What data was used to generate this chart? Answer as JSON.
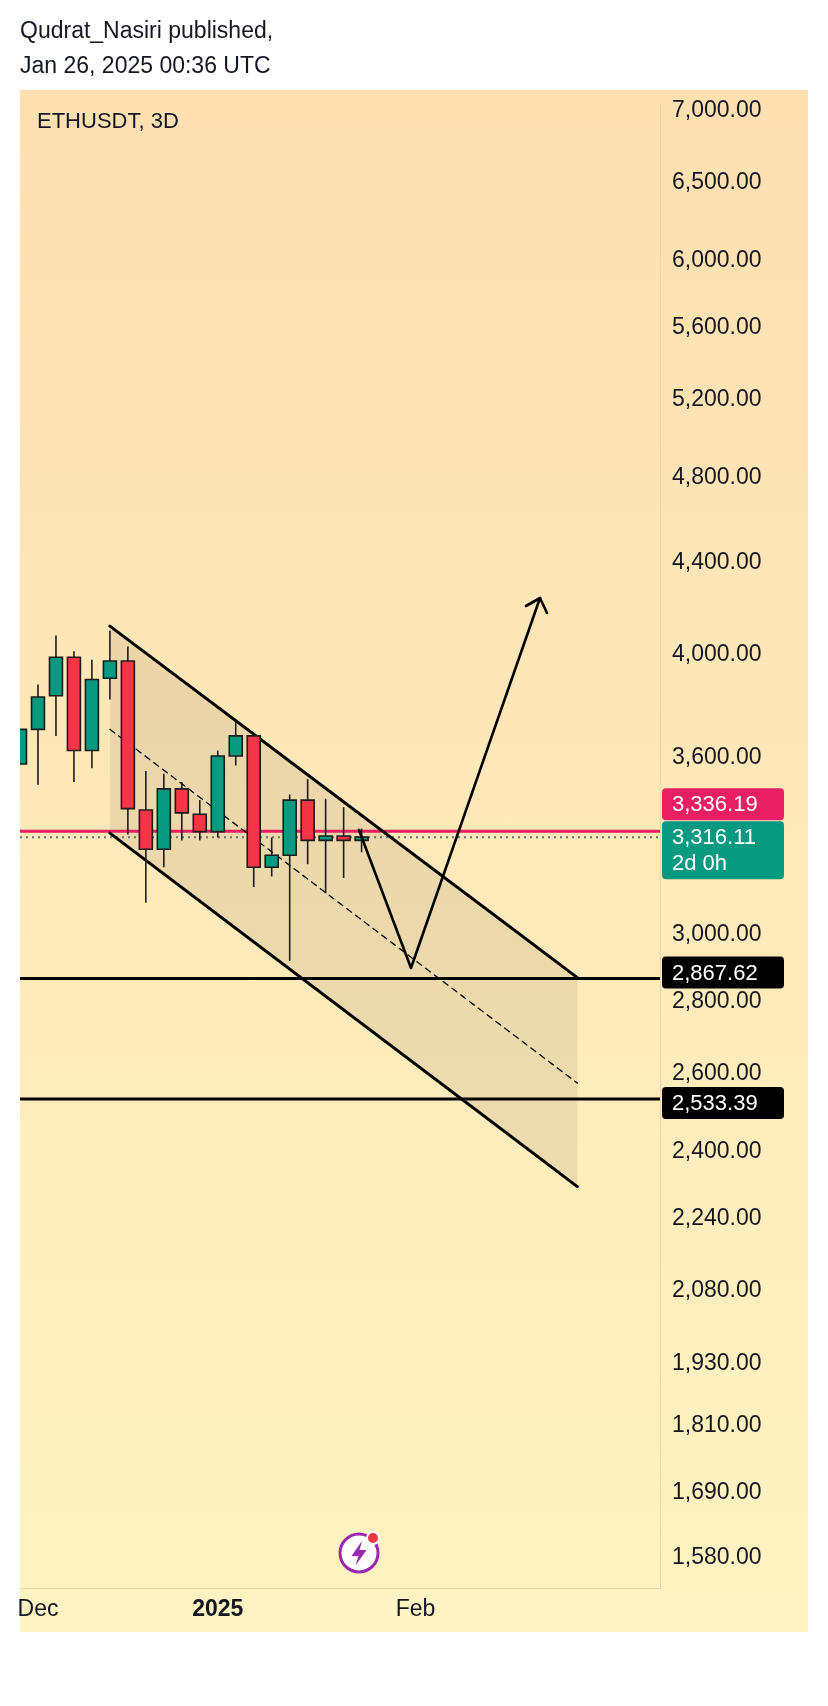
{
  "chart_data": {
    "type": "candlestick",
    "title": "ETHUSDT, 3D",
    "annotations": [
      "Qudrat_Nasiri published,",
      "Jan 26, 2025 00:36 UTC"
    ],
    "x": [
      "2024-11-29",
      "2024-12-02",
      "2024-12-05",
      "2024-12-08",
      "2024-12-11",
      "2024-12-14",
      "2024-12-17",
      "2024-12-20",
      "2024-12-23",
      "2024-12-26",
      "2024-12-29",
      "2025-01-01",
      "2025-01-04",
      "2025-01-07",
      "2025-01-10",
      "2025-01-13",
      "2025-01-16",
      "2025-01-19",
      "2025-01-22",
      "2025-01-25"
    ],
    "ohlc": [
      [
        3575,
        3705,
        3575,
        3705
      ],
      [
        3705,
        3880,
        3500,
        3830
      ],
      [
        3835,
        4080,
        3680,
        3990
      ],
      [
        3990,
        4015,
        3510,
        3625
      ],
      [
        3625,
        3980,
        3560,
        3900
      ],
      [
        3905,
        4100,
        3820,
        3975
      ],
      [
        3975,
        4035,
        3325,
        3415
      ],
      [
        3410,
        3550,
        3100,
        3275
      ],
      [
        3275,
        3540,
        3215,
        3485
      ],
      [
        3485,
        3510,
        3305,
        3400
      ],
      [
        3395,
        3445,
        3305,
        3335
      ],
      [
        3335,
        3625,
        3315,
        3605
      ],
      [
        3605,
        3735,
        3570,
        3680
      ],
      [
        3680,
        3690,
        3150,
        3215
      ],
      [
        3215,
        3315,
        3185,
        3255
      ],
      [
        3255,
        3465,
        2920,
        3445
      ],
      [
        3445,
        3520,
        3225,
        3305
      ],
      [
        3305,
        3450,
        3130,
        3320
      ],
      [
        3320,
        3420,
        3180,
        3305
      ],
      [
        3305,
        3345,
        3265,
        3316.11
      ]
    ],
    "colors": [
      "#089981",
      "#089981",
      "#089981",
      "#f23645",
      "#089981",
      "#089981",
      "#f23645",
      "#f23645",
      "#089981",
      "#f23645",
      "#f23645",
      "#089981",
      "#089981",
      "#f23645",
      "#089981",
      "#089981",
      "#f23645",
      "#089981",
      "#f23645",
      "#089981"
    ],
    "series": [
      {
        "type": "line",
        "x": [
          "2024-12-14",
          "2025-03-02"
        ],
        "values": [
          4120,
          2870
        ],
        "color": "#000000"
      },
      {
        "type": "line",
        "x": [
          "2024-12-14",
          "2025-03-02"
        ],
        "values": [
          3705,
          2575
        ],
        "lower": [
          3330,
          2315
        ],
        "upper": [
          4120,
          2870
        ],
        "color": "#000000",
        "line_style": "dashed"
      },
      {
        "type": "line",
        "x": [
          "2024-12-14",
          "2025-03-02"
        ],
        "values": [
          3330,
          2315
        ],
        "color": "#000000"
      }
    ],
    "ref_lines": [
      {
        "axis": "y",
        "value": 3316.11,
        "label": "3,316.11\n2d 0h",
        "color": "#6a6d78",
        "line_style": "dotted"
      },
      {
        "axis": "y",
        "value": 3336.19,
        "label": "3,336.19",
        "color": "#e91e63"
      },
      {
        "axis": "y",
        "value": 2867.62,
        "label": "2,867.62",
        "color": "#000000"
      },
      {
        "axis": "y",
        "value": 2533.39,
        "label": "2,533.39",
        "color": "#000000"
      }
    ],
    "xlim": [
      "2024-11-29",
      "2025-03-15T19:00"
    ],
    "xticks": [
      {
        "value": "2024-12-02",
        "label": "Dec"
      },
      {
        "value": "2025-01-01",
        "label": "2025"
      },
      {
        "value": "2025-02-03",
        "label": "Feb"
      }
    ],
    "ylim": [
      1532,
      7050
    ],
    "yticks": [
      {
        "value": 7000,
        "label": "7,000.00"
      },
      {
        "value": 6500,
        "label": "6,500.00"
      },
      {
        "value": 6000,
        "label": "6,000.00"
      },
      {
        "value": 5600,
        "label": "5,600.00"
      },
      {
        "value": 5200,
        "label": "5,200.00"
      },
      {
        "value": 4800,
        "label": "4,800.00"
      },
      {
        "value": 4400,
        "label": "4,400.00"
      },
      {
        "value": 4000,
        "label": "4,000.00"
      },
      {
        "value": 3600,
        "label": "3,600.00"
      },
      {
        "value": 3000,
        "label": "3,000.00"
      },
      {
        "value": 2800,
        "label": "2,800.00"
      },
      {
        "value": 2600,
        "label": "2,600.00"
      },
      {
        "value": 2400,
        "label": "2,400.00"
      },
      {
        "value": 2240,
        "label": "2,240.00"
      },
      {
        "value": 2080,
        "label": "2,080.00"
      },
      {
        "value": 1930,
        "label": "1,930.00"
      },
      {
        "value": 1810,
        "label": "1,810.00"
      },
      {
        "value": 1690,
        "label": "1,690.00"
      },
      {
        "value": 1580,
        "label": "1,580.00"
      }
    ],
    "log": true
  }
}
